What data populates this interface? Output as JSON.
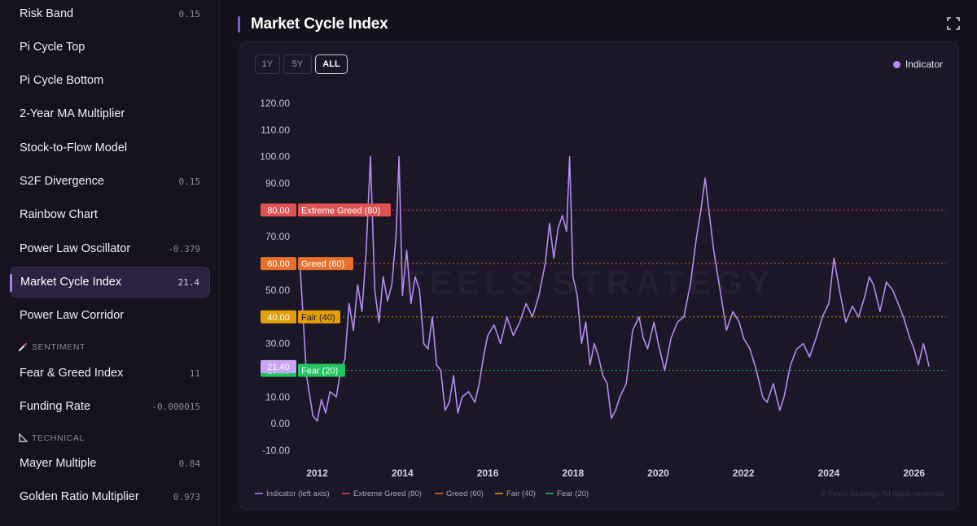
{
  "sidebar": {
    "items": [
      {
        "label": "Risk Band",
        "value": "0.15"
      },
      {
        "label": "Pi Cycle Top",
        "value": ""
      },
      {
        "label": "Pi Cycle Bottom",
        "value": ""
      },
      {
        "label": "2-Year MA Multiplier",
        "value": ""
      },
      {
        "label": "Stock-to-Flow Model",
        "value": ""
      },
      {
        "label": "S2F Divergence",
        "value": "0.15"
      },
      {
        "label": "Rainbow Chart",
        "value": ""
      },
      {
        "label": "Power Law Oscillator",
        "value": "-0.379"
      },
      {
        "label": "Market Cycle Index",
        "value": "21.4"
      },
      {
        "label": "Power Law Corridor",
        "value": ""
      },
      {
        "label": "Fear & Greed Index",
        "value": "11"
      },
      {
        "label": "Funding Rate",
        "value": "-0.000015"
      },
      {
        "label": "Mayer Multiple",
        "value": "0.84"
      },
      {
        "label": "Golden Ratio Multiplier",
        "value": "0.973"
      }
    ],
    "sections": [
      {
        "label": "SENTIMENT",
        "icon": "thermometer-icon"
      },
      {
        "label": "TECHNICAL",
        "icon": "ruler-icon"
      }
    ]
  },
  "header": {
    "title": "Market Cycle Index",
    "expand_icon": "expand-icon"
  },
  "range_buttons": [
    "1Y",
    "5Y",
    "ALL"
  ],
  "legend_top": "Indicator",
  "watermark": "FEELS STRATEGY",
  "copyright": "© Feels Strategy. All rights reserved",
  "colors": {
    "indicator": "#b68af0",
    "extreme_greed": "#e05252",
    "greed": "#e8702a",
    "fair": "#e3a008",
    "fear": "#22c55e",
    "current": "#c8a6f5"
  },
  "chart_data": {
    "type": "line",
    "ylim": [
      -10,
      120
    ],
    "y_ticks": [
      "-10.00",
      "0.00",
      "10.00",
      "20.00",
      "30.00",
      "40.00",
      "50.00",
      "60.00",
      "70.00",
      "80.00",
      "90.00",
      "100.00",
      "110.00",
      "120.00"
    ],
    "x_ticks": [
      "2012",
      "2014",
      "2016",
      "2018",
      "2020",
      "2022",
      "2024",
      "2026"
    ],
    "current_value": "21.40",
    "reference_lines": [
      {
        "value": 80,
        "label": "80.00",
        "name": "Extreme Greed (80)"
      },
      {
        "value": 60,
        "label": "60.00",
        "name": "Greed (60)"
      },
      {
        "value": 40,
        "label": "40.00",
        "name": "Fair (40)"
      },
      {
        "value": 20,
        "label": "20.00",
        "name": "Fear (20)"
      }
    ],
    "legend": [
      "Indicator (left axis)",
      "Extreme Greed (80)",
      "Greed (60)",
      "Fair (40)",
      "Fear (20)"
    ],
    "series": [
      {
        "name": "Indicator",
        "points": [
          [
            2011.6,
            59
          ],
          [
            2011.75,
            18
          ],
          [
            2011.9,
            3
          ],
          [
            2012.0,
            1
          ],
          [
            2012.1,
            9
          ],
          [
            2012.2,
            4
          ],
          [
            2012.3,
            12
          ],
          [
            2012.45,
            10
          ],
          [
            2012.55,
            20
          ],
          [
            2012.65,
            24
          ],
          [
            2012.75,
            45
          ],
          [
            2012.85,
            35
          ],
          [
            2012.95,
            52
          ],
          [
            2013.05,
            42
          ],
          [
            2013.15,
            65
          ],
          [
            2013.25,
            100
          ],
          [
            2013.35,
            50
          ],
          [
            2013.45,
            38
          ],
          [
            2013.55,
            55
          ],
          [
            2013.65,
            46
          ],
          [
            2013.75,
            52
          ],
          [
            2013.85,
            70
          ],
          [
            2013.92,
            100
          ],
          [
            2014.0,
            48
          ],
          [
            2014.1,
            65
          ],
          [
            2014.2,
            45
          ],
          [
            2014.3,
            55
          ],
          [
            2014.4,
            50
          ],
          [
            2014.5,
            30
          ],
          [
            2014.6,
            28
          ],
          [
            2014.7,
            40
          ],
          [
            2014.8,
            22
          ],
          [
            2014.9,
            20
          ],
          [
            2015.0,
            5
          ],
          [
            2015.1,
            8
          ],
          [
            2015.2,
            18
          ],
          [
            2015.3,
            4
          ],
          [
            2015.4,
            10
          ],
          [
            2015.55,
            12
          ],
          [
            2015.7,
            8
          ],
          [
            2015.8,
            15
          ],
          [
            2015.9,
            25
          ],
          [
            2016.0,
            33
          ],
          [
            2016.15,
            37
          ],
          [
            2016.3,
            30
          ],
          [
            2016.45,
            40
          ],
          [
            2016.6,
            33
          ],
          [
            2016.75,
            38
          ],
          [
            2016.9,
            45
          ],
          [
            2017.05,
            40
          ],
          [
            2017.2,
            48
          ],
          [
            2017.35,
            60
          ],
          [
            2017.45,
            75
          ],
          [
            2017.55,
            62
          ],
          [
            2017.65,
            73
          ],
          [
            2017.75,
            78
          ],
          [
            2017.85,
            72
          ],
          [
            2017.92,
            100
          ],
          [
            2018.0,
            55
          ],
          [
            2018.1,
            48
          ],
          [
            2018.2,
            30
          ],
          [
            2018.3,
            38
          ],
          [
            2018.4,
            22
          ],
          [
            2018.5,
            30
          ],
          [
            2018.6,
            25
          ],
          [
            2018.7,
            18
          ],
          [
            2018.8,
            15
          ],
          [
            2018.9,
            2
          ],
          [
            2019.0,
            5
          ],
          [
            2019.1,
            10
          ],
          [
            2019.25,
            15
          ],
          [
            2019.4,
            35
          ],
          [
            2019.55,
            40
          ],
          [
            2019.65,
            32
          ],
          [
            2019.75,
            28
          ],
          [
            2019.9,
            38
          ],
          [
            2020.0,
            30
          ],
          [
            2020.15,
            20
          ],
          [
            2020.3,
            32
          ],
          [
            2020.45,
            38
          ],
          [
            2020.6,
            40
          ],
          [
            2020.75,
            52
          ],
          [
            2020.9,
            70
          ],
          [
            2021.0,
            80
          ],
          [
            2021.1,
            92
          ],
          [
            2021.2,
            78
          ],
          [
            2021.3,
            65
          ],
          [
            2021.4,
            55
          ],
          [
            2021.5,
            45
          ],
          [
            2021.6,
            35
          ],
          [
            2021.75,
            42
          ],
          [
            2021.9,
            38
          ],
          [
            2022.0,
            32
          ],
          [
            2022.15,
            28
          ],
          [
            2022.3,
            20
          ],
          [
            2022.45,
            10
          ],
          [
            2022.55,
            8
          ],
          [
            2022.7,
            15
          ],
          [
            2022.85,
            5
          ],
          [
            2022.95,
            10
          ],
          [
            2023.1,
            22
          ],
          [
            2023.25,
            28
          ],
          [
            2023.4,
            30
          ],
          [
            2023.55,
            25
          ],
          [
            2023.7,
            32
          ],
          [
            2023.85,
            40
          ],
          [
            2024.0,
            45
          ],
          [
            2024.12,
            62
          ],
          [
            2024.25,
            50
          ],
          [
            2024.4,
            38
          ],
          [
            2024.55,
            44
          ],
          [
            2024.7,
            40
          ],
          [
            2024.85,
            48
          ],
          [
            2024.95,
            55
          ],
          [
            2025.05,
            52
          ],
          [
            2025.2,
            42
          ],
          [
            2025.35,
            53
          ],
          [
            2025.5,
            50
          ],
          [
            2025.65,
            44
          ],
          [
            2025.75,
            40
          ],
          [
            2025.9,
            32
          ],
          [
            2026.0,
            28
          ],
          [
            2026.1,
            22
          ],
          [
            2026.22,
            30
          ],
          [
            2026.3,
            25
          ],
          [
            2026.35,
            21.4
          ]
        ]
      }
    ]
  }
}
